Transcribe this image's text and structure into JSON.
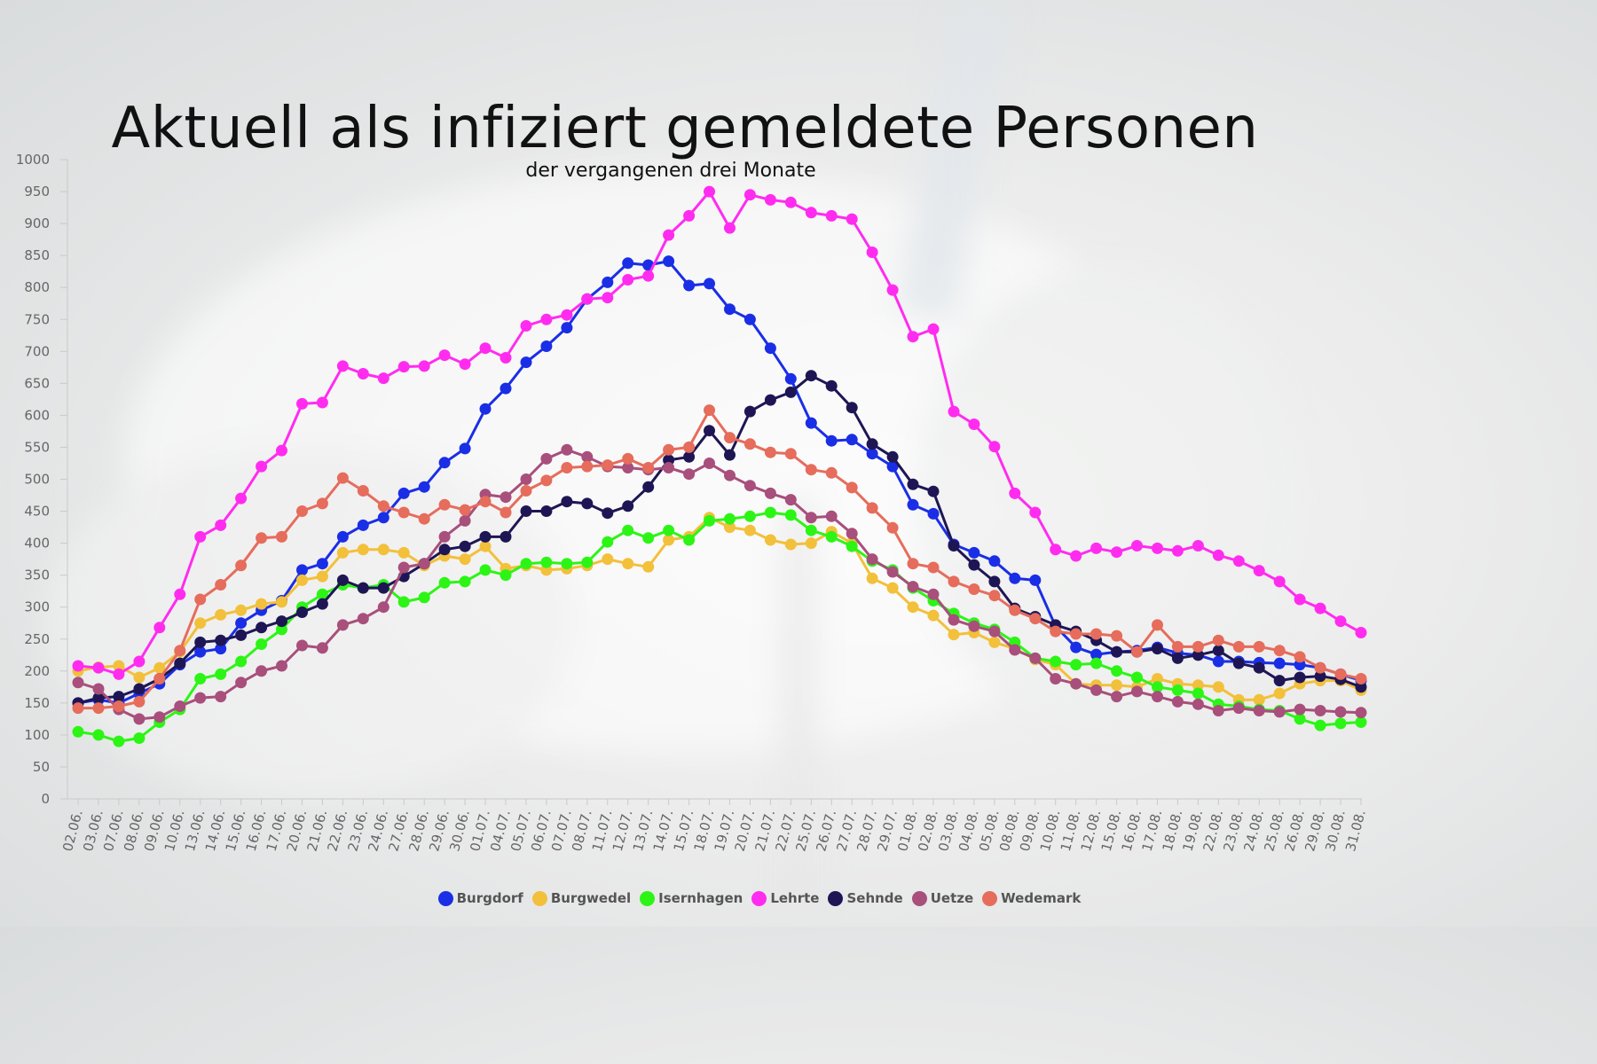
{
  "chart_data": {
    "type": "line",
    "title": "Aktuell als infiziert gemeldete Personen",
    "subtitle": "der vergangenen drei Monate",
    "xlabel": "",
    "ylabel": "",
    "ylim": [
      0,
      1000
    ],
    "y_ticks": [
      0,
      50,
      100,
      150,
      200,
      250,
      300,
      350,
      400,
      450,
      500,
      550,
      600,
      650,
      700,
      750,
      800,
      850,
      900,
      950,
      1000
    ],
    "grid": false,
    "legend_position": "bottom",
    "categories": [
      "02.06.",
      "03.06.",
      "07.06.",
      "08.06.",
      "09.06.",
      "10.06.",
      "13.06.",
      "14.06.",
      "15.06.",
      "16.06.",
      "17.06.",
      "20.06.",
      "21.06.",
      "22.06.",
      "23.06.",
      "24.06.",
      "27.06.",
      "28.06.",
      "29.06.",
      "30.06.",
      "01.07.",
      "04.07.",
      "05.07.",
      "06.07.",
      "07.07.",
      "08.07.",
      "11.07.",
      "12.07.",
      "13.07.",
      "14.07.",
      "15.07.",
      "18.07.",
      "19.07.",
      "20.07.",
      "21.07.",
      "22.07.",
      "25.07.",
      "26.07.",
      "27.07.",
      "28.07.",
      "29.07.",
      "01.08.",
      "02.08.",
      "03.08.",
      "04.08.",
      "05.08.",
      "08.08.",
      "09.08.",
      "10.08.",
      "11.08.",
      "12.08.",
      "15.08.",
      "16.08.",
      "17.08.",
      "18.08.",
      "19.08.",
      "22.08.",
      "23.08.",
      "24.08.",
      "25.08.",
      "26.08.",
      "29.08.",
      "30.08.",
      "31.08."
    ],
    "series": [
      {
        "name": "Burgdorf",
        "color": "#1a2ee6",
        "values": [
          150,
          155,
          150,
          165,
          180,
          210,
          230,
          235,
          275,
          295,
          310,
          358,
          368,
          410,
          428,
          440,
          478,
          488,
          526,
          548,
          610,
          642,
          683,
          708,
          737,
          782,
          808,
          838,
          835,
          841,
          803,
          806,
          766,
          750,
          705,
          657,
          588,
          560,
          562,
          540,
          520,
          460,
          446,
          398,
          385,
          372,
          345,
          342,
          270,
          237,
          226,
          230,
          232,
          237,
          228,
          225,
          215,
          215,
          213,
          212,
          210,
          205,
          195,
          185
        ]
      },
      {
        "name": "Burgwedel",
        "color": "#f2c03a",
        "values": [
          200,
          206,
          208,
          190,
          205,
          230,
          275,
          288,
          295,
          305,
          308,
          342,
          348,
          385,
          390,
          390,
          385,
          365,
          380,
          375,
          395,
          360,
          365,
          358,
          360,
          365,
          375,
          368,
          363,
          405,
          410,
          440,
          425,
          420,
          405,
          398,
          400,
          418,
          400,
          345,
          330,
          300,
          287,
          257,
          260,
          245,
          235,
          218,
          210,
          180,
          178,
          178,
          175,
          188,
          180,
          178,
          175,
          155,
          155,
          165,
          180,
          185,
          185,
          170
        ]
      },
      {
        "name": "Isernhagen",
        "color": "#2cf516",
        "values": [
          105,
          100,
          90,
          95,
          120,
          140,
          188,
          195,
          215,
          242,
          265,
          300,
          320,
          335,
          330,
          335,
          308,
          315,
          338,
          340,
          358,
          350,
          368,
          370,
          368,
          370,
          402,
          420,
          408,
          420,
          405,
          435,
          438,
          442,
          448,
          444,
          420,
          410,
          395,
          372,
          358,
          330,
          310,
          290,
          275,
          265,
          245,
          220,
          215,
          210,
          212,
          200,
          190,
          175,
          170,
          165,
          148,
          145,
          140,
          138,
          125,
          115,
          118,
          120
        ]
      },
      {
        "name": "Lehrte",
        "color": "#ff2cf0",
        "values": [
          208,
          205,
          195,
          215,
          268,
          320,
          410,
          428,
          470,
          520,
          545,
          618,
          620,
          677,
          665,
          658,
          676,
          677,
          694,
          680,
          705,
          690,
          740,
          750,
          757,
          782,
          784,
          812,
          818,
          882,
          912,
          950,
          893,
          945,
          937,
          933,
          917,
          912,
          907,
          855,
          796,
          723,
          735,
          606,
          586,
          551,
          478,
          448,
          390,
          380,
          392,
          386,
          396,
          392,
          388,
          396,
          381,
          372,
          357,
          340,
          312,
          298,
          278,
          260
        ]
      },
      {
        "name": "Sehnde",
        "color": "#1e1654",
        "values": [
          150,
          158,
          160,
          172,
          188,
          212,
          245,
          248,
          256,
          268,
          278,
          292,
          305,
          342,
          330,
          330,
          348,
          368,
          390,
          395,
          410,
          410,
          450,
          450,
          465,
          462,
          447,
          458,
          488,
          530,
          535,
          576,
          538,
          606,
          624,
          636,
          662,
          646,
          612,
          555,
          535,
          492,
          481,
          396,
          366,
          340,
          298,
          285,
          272,
          262,
          248,
          230,
          230,
          235,
          220,
          225,
          232,
          212,
          205,
          185,
          190,
          192,
          187,
          175
        ]
      },
      {
        "name": "Uetze",
        "color": "#a84f7c",
        "values": [
          182,
          172,
          140,
          125,
          128,
          145,
          158,
          160,
          182,
          200,
          208,
          240,
          236,
          272,
          282,
          300,
          362,
          368,
          410,
          435,
          476,
          472,
          500,
          532,
          546,
          535,
          520,
          518,
          515,
          518,
          508,
          525,
          506,
          490,
          478,
          468,
          440,
          442,
          415,
          375,
          355,
          332,
          320,
          280,
          270,
          262,
          233,
          220,
          188,
          180,
          170,
          160,
          168,
          160,
          152,
          148,
          138,
          142,
          138,
          136,
          140,
          138,
          136,
          135
        ]
      },
      {
        "name": "Wedemark",
        "color": "#e66c5c",
        "values": [
          142,
          142,
          145,
          152,
          188,
          232,
          312,
          335,
          365,
          408,
          410,
          450,
          462,
          502,
          482,
          458,
          448,
          438,
          460,
          452,
          465,
          448,
          482,
          498,
          518,
          520,
          522,
          532,
          518,
          546,
          550,
          608,
          565,
          555,
          542,
          540,
          515,
          510,
          487,
          455,
          424,
          368,
          362,
          340,
          328,
          318,
          295,
          282,
          262,
          258,
          258,
          255,
          230,
          272,
          238,
          238,
          248,
          238,
          238,
          232,
          222,
          205,
          195,
          188
        ]
      }
    ]
  }
}
